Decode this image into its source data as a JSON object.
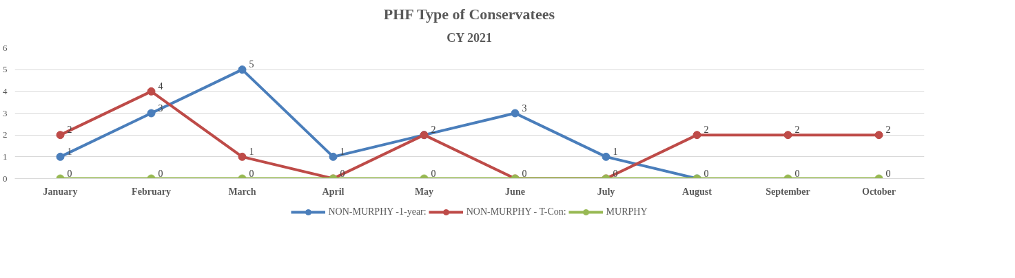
{
  "chart_data": {
    "type": "line",
    "title": "PHF Type of Conservatees",
    "subtitle": "CY 2021",
    "categories": [
      "January",
      "February",
      "March",
      "April",
      "May",
      "June",
      "July",
      "August",
      "September",
      "October"
    ],
    "series": [
      {
        "name": "NON-MURPHY -1-year:",
        "color": "#4a7ebb",
        "values": [
          1,
          3,
          5,
          1,
          2,
          3,
          1,
          0,
          null,
          null
        ],
        "value_labels": [
          "1",
          "3",
          "5",
          "1",
          "2",
          "3",
          "1",
          null,
          null,
          null
        ]
      },
      {
        "name": "NON-MURPHY - T-Con:",
        "color": "#be4b48",
        "values": [
          2,
          4,
          1,
          0,
          2,
          0,
          0,
          2,
          2,
          2
        ],
        "value_labels": [
          "2",
          "4",
          "1",
          null,
          null,
          null,
          null,
          "2",
          "2",
          "2"
        ]
      },
      {
        "name": "MURPHY",
        "color": "#98b954",
        "values": [
          0,
          0,
          0,
          0,
          0,
          0,
          0,
          0,
          0,
          0
        ],
        "value_labels": [
          "0",
          "0",
          "0",
          "0",
          "0",
          "0",
          "0",
          "0",
          "0",
          "0"
        ]
      }
    ],
    "ylim": [
      0,
      6
    ],
    "yticks": [
      0,
      1,
      2,
      3,
      4,
      5,
      6
    ],
    "grid": "y",
    "legend": "bottom",
    "marker": "circle",
    "line_style": "solid"
  }
}
